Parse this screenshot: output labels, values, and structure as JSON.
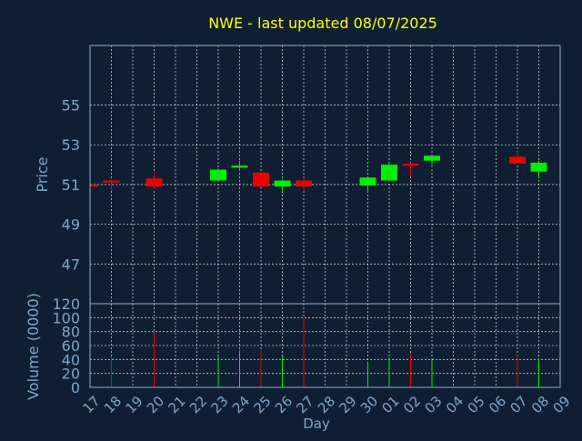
{
  "chart_data": {
    "type": "candlestick",
    "title": "NWE - last updated 08/07/2025",
    "xlabel": "Day",
    "price_panel": {
      "ylabel": "Price",
      "ylim": [
        45,
        58
      ],
      "yticks": [
        47,
        49,
        51,
        53,
        55
      ]
    },
    "volume_panel": {
      "ylabel": "Volume (0000)",
      "ylim": [
        0,
        120
      ],
      "yticks": [
        0,
        20,
        40,
        60,
        80,
        100,
        120
      ]
    },
    "x_tick_labels": [
      "17",
      "18",
      "19",
      "20",
      "21",
      "22",
      "23",
      "24",
      "25",
      "26",
      "27",
      "28",
      "29",
      "30",
      "01",
      "02",
      "03",
      "04",
      "05",
      "06",
      "07",
      "08",
      "09"
    ],
    "grid": true,
    "colors": {
      "up": "#00ee00",
      "down": "#ee0000",
      "title": "#ffff00",
      "axis_label": "#7ea6c8",
      "grid": "#c8c8c8",
      "background": "#0f1f33"
    },
    "candles": [
      {
        "day": "17",
        "open": 51.0,
        "high": 51.0,
        "low": 50.9,
        "close": 50.9,
        "volume": 0
      },
      {
        "day": "18",
        "open": 51.2,
        "high": 51.25,
        "low": 50.7,
        "close": 51.1,
        "volume": 45
      },
      {
        "day": "20",
        "open": 51.3,
        "high": 51.6,
        "low": 50.75,
        "close": 50.9,
        "volume": 78
      },
      {
        "day": "23",
        "open": 51.2,
        "high": 51.8,
        "low": 51.2,
        "close": 51.75,
        "volume": 44
      },
      {
        "day": "24",
        "open": 51.85,
        "high": 52.2,
        "low": 51.7,
        "close": 51.95,
        "volume": 53
      },
      {
        "day": "25",
        "open": 51.6,
        "high": 51.65,
        "low": 50.85,
        "close": 50.9,
        "volume": 52
      },
      {
        "day": "26",
        "open": 50.9,
        "high": 51.25,
        "low": 50.7,
        "close": 51.2,
        "volume": 47
      },
      {
        "day": "27",
        "open": 51.2,
        "high": 51.3,
        "low": 50.7,
        "close": 50.9,
        "volume": 100
      },
      {
        "day": "30",
        "open": 50.95,
        "high": 51.35,
        "low": 50.6,
        "close": 51.35,
        "volume": 36
      },
      {
        "day": "01",
        "open": 51.2,
        "high": 52.05,
        "low": 51.15,
        "close": 52.0,
        "volume": 43
      },
      {
        "day": "02",
        "open": 52.05,
        "high": 52.1,
        "low": 51.4,
        "close": 51.95,
        "volume": 48
      },
      {
        "day": "03",
        "open": 52.2,
        "high": 52.5,
        "low": 52.0,
        "close": 52.45,
        "volume": 39
      },
      {
        "day": "07",
        "open": 52.4,
        "high": 52.65,
        "low": 52.05,
        "close": 52.05,
        "volume": 46
      },
      {
        "day": "08",
        "open": 51.65,
        "high": 52.2,
        "low": 51.3,
        "close": 52.1,
        "volume": 42
      }
    ]
  }
}
